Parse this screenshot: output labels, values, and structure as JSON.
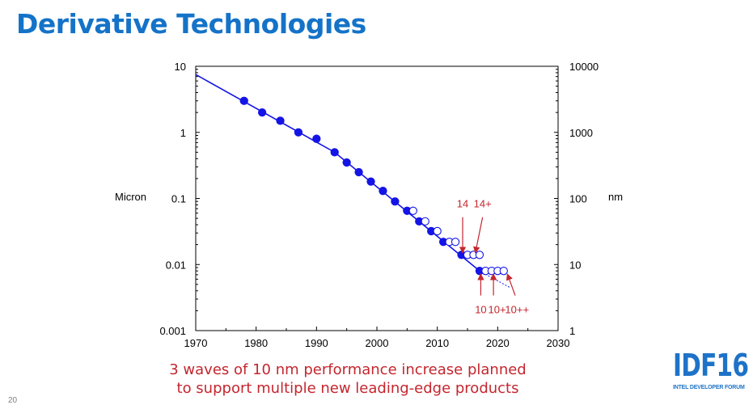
{
  "slide": {
    "title": "Derivative Technologies",
    "number": "20",
    "caption_line1": "3 waves of 10 nm performance increase planned",
    "caption_line2": "to support multiple new leading-edge products",
    "logo_main": "IDF16",
    "logo_sub": "INTEL DEVELOPER FORUM"
  },
  "colors": {
    "title": "#1473c8",
    "series": "#1414e6",
    "annotation": "#c4262e",
    "logo": "#1e73c8"
  },
  "chart_data": {
    "type": "scatter",
    "xlim": [
      1970,
      2030
    ],
    "ylim": [
      0.001,
      10
    ],
    "y_scale": "log",
    "y2lim": [
      1,
      10000
    ],
    "x_ticks": [
      "1970",
      "1980",
      "1990",
      "2000",
      "2010",
      "2020",
      "2030"
    ],
    "y_ticks": [
      "10",
      "1",
      "0.1",
      "0.01",
      "0.001"
    ],
    "y2_ticks": [
      "10000",
      "1000",
      "100",
      "10",
      "1"
    ],
    "ylabel": "Micron",
    "y2label": "nm",
    "trend_line": {
      "x": [
        1970,
        1993,
        2017
      ],
      "y": [
        7.5,
        0.5,
        0.008
      ]
    },
    "trend_extension": {
      "x": [
        2017,
        2022
      ],
      "y": [
        0.008,
        0.0045
      ]
    },
    "series": [
      {
        "marker": "filled",
        "x": [
          1978,
          1981,
          1984,
          1987,
          1990,
          1993,
          1995,
          1997,
          1999,
          2001,
          2003,
          2005,
          2007,
          2009,
          2011,
          2014,
          2017
        ],
        "y": [
          3,
          2,
          1.5,
          1,
          0.8,
          0.5,
          0.35,
          0.25,
          0.18,
          0.13,
          0.09,
          0.065,
          0.045,
          0.032,
          0.022,
          0.014,
          0.008
        ]
      },
      {
        "marker": "open",
        "x": [
          2006,
          2008,
          2010,
          2012,
          2013,
          2015,
          2016,
          2017,
          2018,
          2019,
          2020,
          2021
        ],
        "y": [
          0.065,
          0.045,
          0.032,
          0.022,
          0.022,
          0.014,
          0.014,
          0.014,
          0.008,
          0.008,
          0.008,
          0.008
        ]
      }
    ],
    "annotations": [
      {
        "label": "14",
        "label_at": [
          2014.2,
          0.085
        ],
        "arrow_from": [
          2014.2,
          0.052
        ],
        "arrow_to": [
          2014.2,
          0.015
        ]
      },
      {
        "label": "14+",
        "label_at": [
          2017.5,
          0.085
        ],
        "arrow_from": [
          2017.5,
          0.052
        ],
        "arrow_to": [
          2016.3,
          0.015
        ]
      },
      {
        "label": "10",
        "label_at": [
          2017.2,
          0.0021
        ],
        "arrow_from": [
          2017.2,
          0.0034
        ],
        "arrow_to": [
          2017.2,
          0.0072
        ]
      },
      {
        "label": "10+",
        "label_at": [
          2019.9,
          0.0021
        ],
        "arrow_from": [
          2019.3,
          0.0034
        ],
        "arrow_to": [
          2019.3,
          0.0072
        ]
      },
      {
        "label": "10++",
        "label_at": [
          2023.2,
          0.0021
        ],
        "arrow_from": [
          2022.9,
          0.0034
        ],
        "arrow_to": [
          2021.6,
          0.0072
        ]
      }
    ]
  }
}
